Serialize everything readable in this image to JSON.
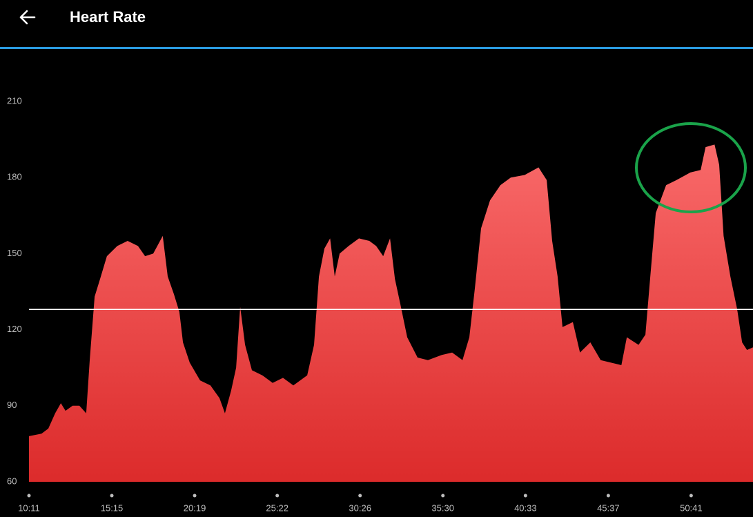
{
  "header": {
    "title": "Heart Rate"
  },
  "chart_data": {
    "type": "area",
    "x": [
      611,
      657,
      682,
      707,
      728,
      745,
      771,
      796,
      821,
      834,
      852,
      872,
      897,
      935,
      973,
      1011,
      1037,
      1067,
      1102,
      1120,
      1143,
      1163,
      1176,
      1201,
      1239,
      1277,
      1310,
      1330,
      1353,
      1371,
      1386,
      1404,
      1429,
      1467,
      1505,
      1543,
      1581,
      1632,
      1657,
      1675,
      1695,
      1716,
      1733,
      1751,
      1784,
      1822,
      1860,
      1885,
      1911,
      1936,
      1954,
      1974,
      1999,
      2037,
      2075,
      2126,
      2164,
      2202,
      2227,
      2247,
      2270,
      2303,
      2341,
      2379,
      2430,
      2481,
      2511,
      2531,
      2551,
      2569,
      2607,
      2633,
      2671,
      2709,
      2747,
      2785,
      2805,
      2848,
      2873,
      2891,
      2911,
      2949,
      2987,
      3038,
      3076,
      3094,
      3127,
      3144,
      3160,
      3185,
      3210,
      3228,
      3246,
      3268
    ],
    "values": [
      78,
      79,
      81,
      87,
      91,
      88,
      90,
      90,
      87,
      108,
      133,
      140,
      149,
      153,
      155,
      153,
      149,
      150,
      157,
      141,
      134,
      127,
      115,
      107,
      100,
      98,
      93,
      87,
      96,
      105,
      129,
      114,
      104,
      102,
      99,
      101,
      98,
      102,
      114,
      141,
      152,
      156,
      141,
      150,
      153,
      156,
      155,
      153,
      149,
      156,
      140,
      130,
      117,
      109,
      108,
      110,
      111,
      108,
      117,
      136,
      160,
      171,
      177,
      180,
      181,
      184,
      179,
      155,
      141,
      121,
      123,
      111,
      115,
      108,
      107,
      106,
      117,
      114,
      118,
      141,
      166,
      177,
      179,
      182,
      183,
      192,
      193,
      185,
      157,
      141,
      128,
      115,
      112,
      113
    ],
    "xlim": [
      611,
      3268
    ],
    "xticks": [
      {
        "value": 611,
        "label": "10:11"
      },
      {
        "value": 915,
        "label": "15:15"
      },
      {
        "value": 1219,
        "label": "20:19"
      },
      {
        "value": 1522,
        "label": "25:22"
      },
      {
        "value": 1826,
        "label": "30:26"
      },
      {
        "value": 2130,
        "label": "35:30"
      },
      {
        "value": 2433,
        "label": "40:33"
      },
      {
        "value": 2737,
        "label": "45:37"
      },
      {
        "value": 3041,
        "label": "50:41"
      }
    ],
    "ylim": [
      60,
      210
    ],
    "yticks": [
      60,
      90,
      120,
      150,
      180,
      210
    ],
    "reference_line": 128,
    "color_top": "#f96a6a",
    "color_bottom": "#dc2b2b"
  }
}
